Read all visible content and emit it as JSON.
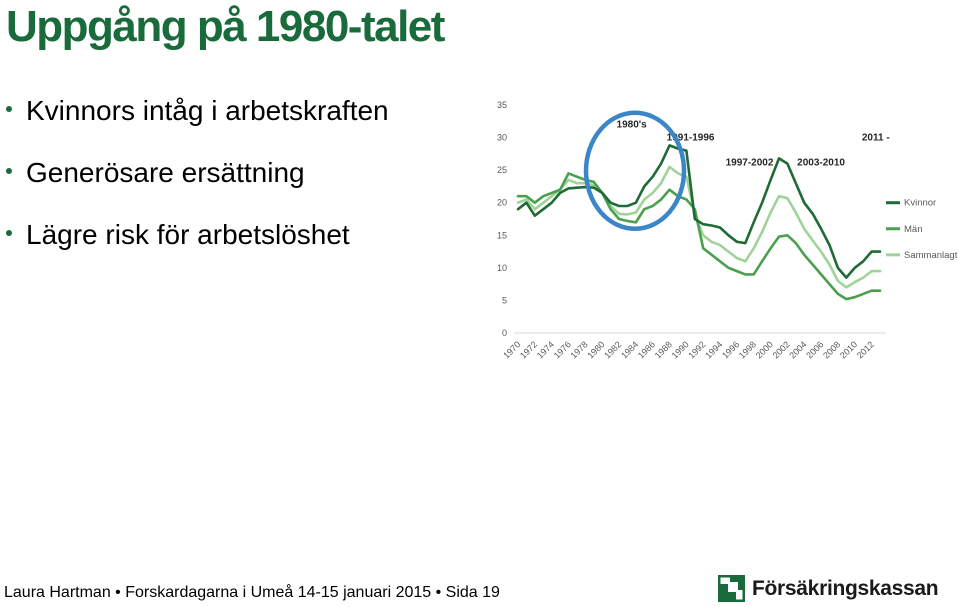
{
  "slide": {
    "title": "Uppgång på 1980-talet",
    "bullets": [
      "Kvinnors intåg i arbetskraften",
      "Generösare ersättning",
      "Lägre risk för arbetslöshet"
    ],
    "footer": "Laura Hartman • Forskardagarna i Umeå 14-15 januari 2015 • Sida 19",
    "logo_text": "Försäkringskassan",
    "colors": {
      "title": "#1a6b3c",
      "highlight_circle": "#3a86c8"
    }
  },
  "chart_data": {
    "type": "line",
    "title": "",
    "xlabel": "",
    "ylabel": "",
    "ylim": [
      0,
      35
    ],
    "yticks": [
      0,
      5,
      10,
      15,
      20,
      25,
      30,
      35
    ],
    "x": [
      1970,
      1971,
      1972,
      1973,
      1974,
      1975,
      1976,
      1977,
      1978,
      1979,
      1980,
      1981,
      1982,
      1983,
      1984,
      1985,
      1986,
      1987,
      1988,
      1989,
      1990,
      1991,
      1992,
      1993,
      1994,
      1995,
      1996,
      1997,
      1998,
      1999,
      2000,
      2001,
      2002,
      2003,
      2004,
      2005,
      2006,
      2007,
      2008,
      2009,
      2010,
      2011,
      2012,
      2013
    ],
    "xticks": [
      1970,
      1972,
      1974,
      1976,
      1978,
      1980,
      1982,
      1984,
      1986,
      1988,
      1990,
      1992,
      1994,
      1996,
      1998,
      2000,
      2002,
      2004,
      2006,
      2008,
      2010,
      2012
    ],
    "grid": false,
    "legend_position": "right",
    "series": [
      {
        "name": "Kvinnor",
        "color": "#1e6b35",
        "values": [
          19,
          20,
          18,
          19,
          20,
          21.5,
          22.2,
          22.3,
          22.4,
          22.3,
          21.5,
          20,
          19.5,
          19.5,
          20,
          22.5,
          24,
          26,
          28.8,
          28.3,
          28,
          17.5,
          16.7,
          16.5,
          16.2,
          15,
          14,
          13.8,
          17,
          20,
          23.5,
          26.8,
          26,
          23,
          20,
          18.3,
          16,
          13.5,
          10,
          8.5,
          10,
          11,
          12.5,
          12.5
        ]
      },
      {
        "name": "Män",
        "color": "#4aa04e",
        "values": [
          21,
          21,
          20,
          21,
          21.5,
          22,
          24.5,
          24,
          23.5,
          23.2,
          21.5,
          19,
          17.5,
          17.2,
          17,
          19,
          19.5,
          20.5,
          22,
          21,
          20.5,
          19,
          13,
          12,
          11,
          10,
          9.5,
          9,
          9,
          11,
          13,
          14.8,
          15,
          13.8,
          12,
          10.5,
          9,
          7.5,
          6,
          5.2,
          5.5,
          6,
          6.5,
          6.5
        ]
      },
      {
        "name": "Sammanlagt",
        "color": "#9fd39a",
        "values": [
          20,
          20.5,
          19,
          20,
          21,
          22,
          23.5,
          23,
          23,
          22.7,
          21.5,
          19.5,
          18.3,
          18.2,
          18.5,
          20.5,
          21.5,
          23,
          25.5,
          24.5,
          24,
          18.2,
          15,
          14,
          13.5,
          12.5,
          11.5,
          11,
          13,
          15.5,
          18.5,
          21,
          20.7,
          18.5,
          16,
          14.2,
          12.5,
          10.5,
          8,
          7,
          7.8,
          8.5,
          9.5,
          9.5
        ]
      }
    ],
    "annotations": [
      {
        "text": "1980's",
        "x": 1983.5,
        "y": 32
      },
      {
        "text": "1991-1996",
        "x": 1990.5,
        "y": 30
      },
      {
        "text": "1997-2002",
        "x": 1997.5,
        "y": 26.2
      },
      {
        "text": "2003-2010",
        "x": 2006,
        "y": 26.2
      },
      {
        "text": "2011 -",
        "x": 2012.5,
        "y": 30
      }
    ]
  }
}
